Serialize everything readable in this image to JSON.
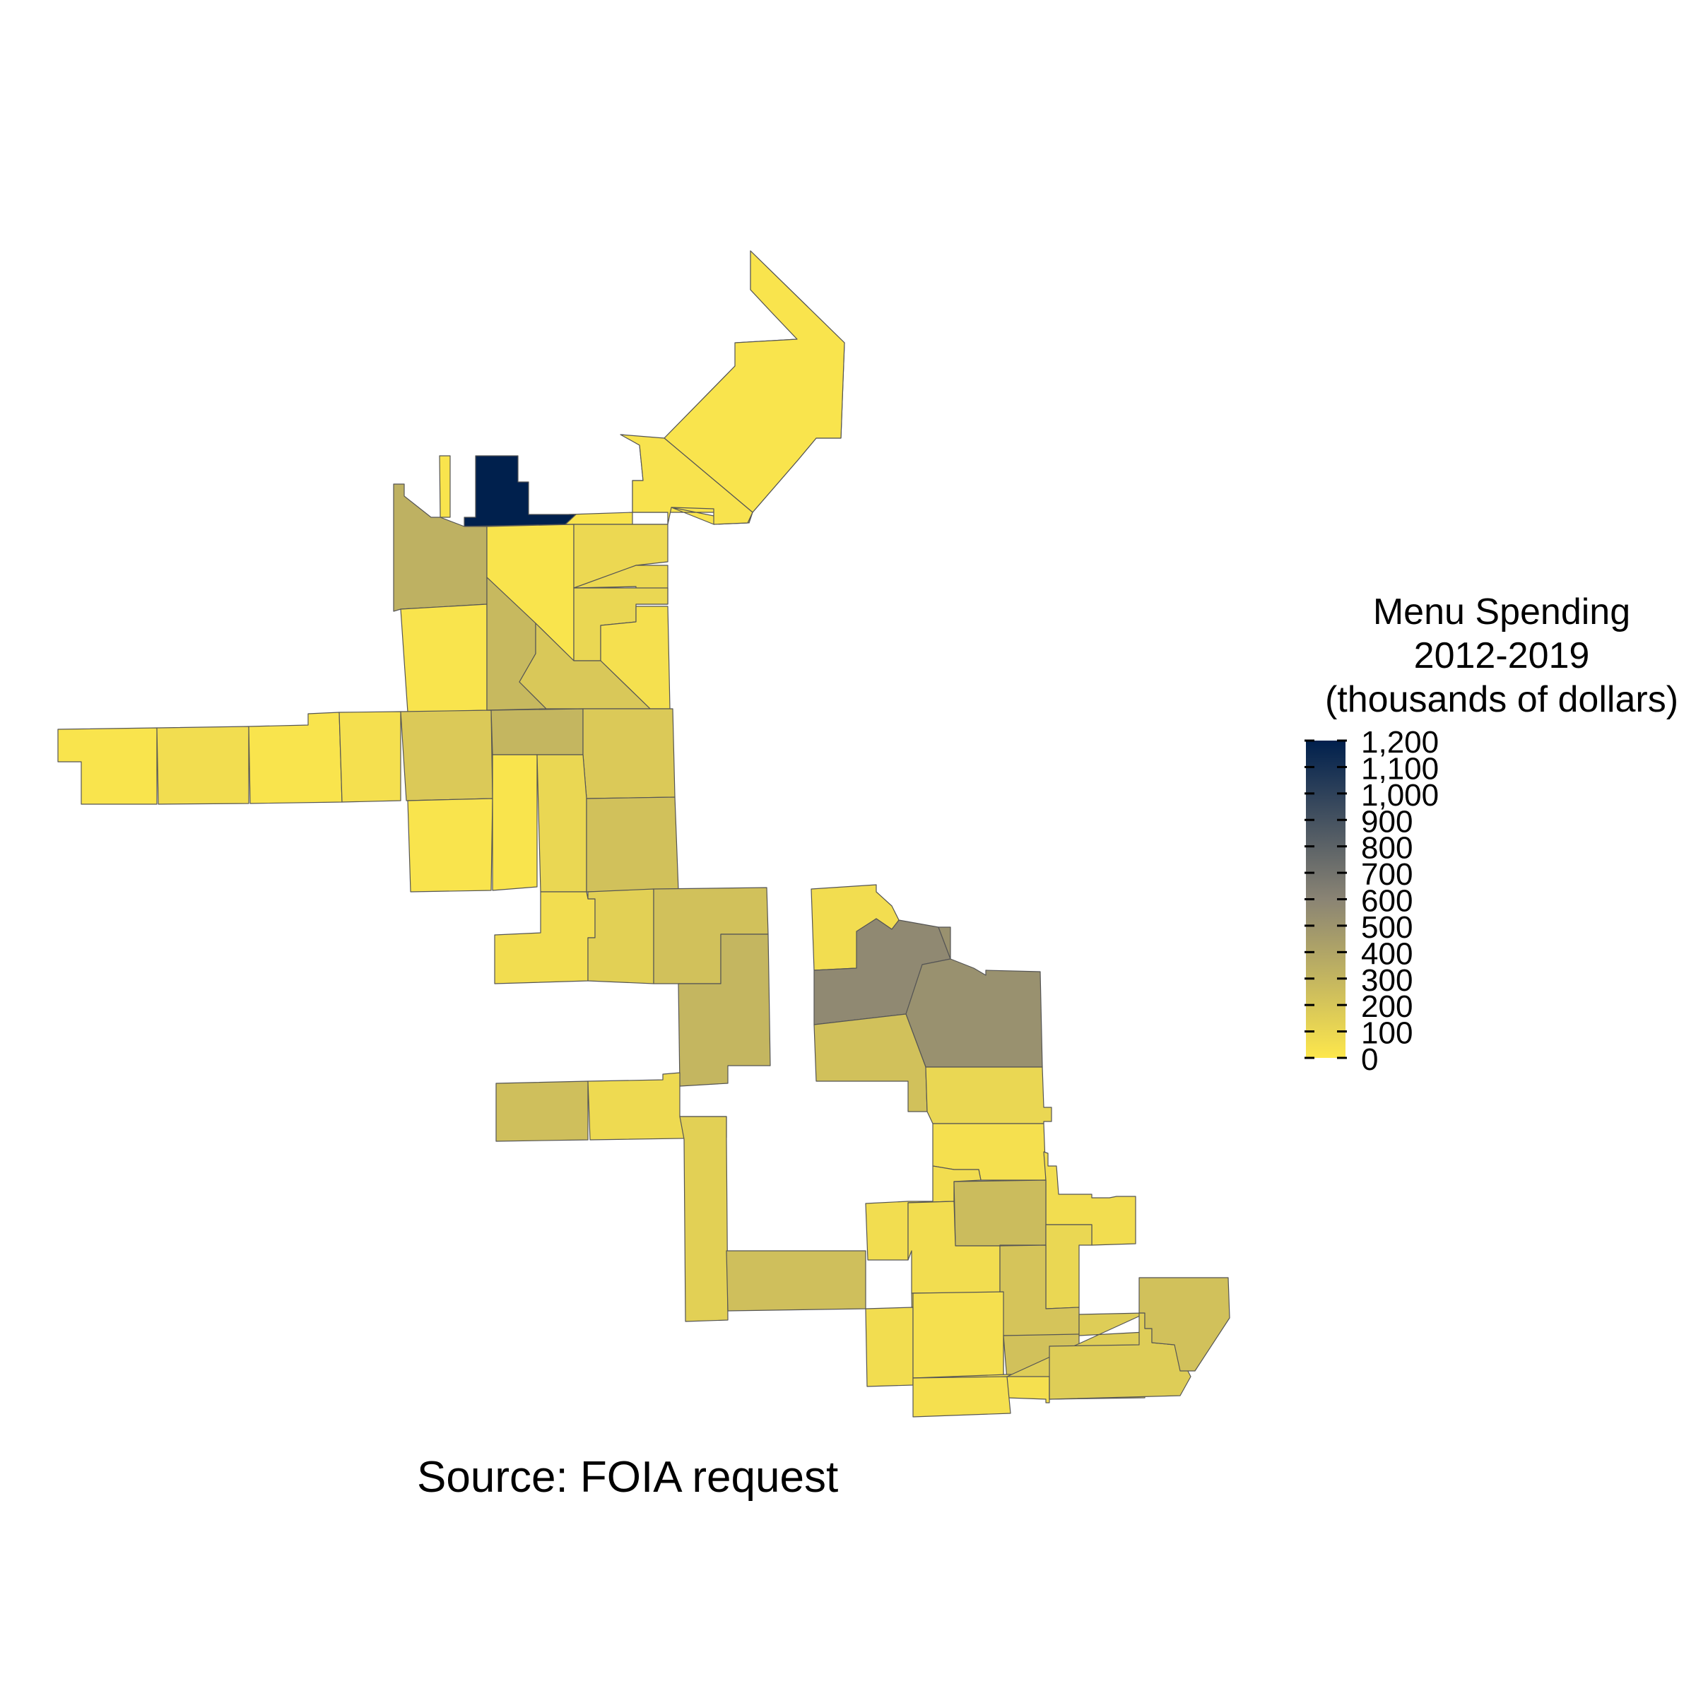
{
  "legend": {
    "title_lines": [
      "Menu Spending",
      "2012-2019",
      "(thousands of dollars)"
    ],
    "min": 0,
    "max": 1200,
    "ticks": [
      {
        "value": 1200,
        "label": "1,200"
      },
      {
        "value": 1100,
        "label": "1,100"
      },
      {
        "value": 1000,
        "label": "1,000"
      },
      {
        "value": 900,
        "label": "900"
      },
      {
        "value": 800,
        "label": "800"
      },
      {
        "value": 700,
        "label": "700"
      },
      {
        "value": 600,
        "label": "600"
      },
      {
        "value": 500,
        "label": "500"
      },
      {
        "value": 400,
        "label": "400"
      },
      {
        "value": 300,
        "label": "300"
      },
      {
        "value": 200,
        "label": "200"
      },
      {
        "value": 100,
        "label": "100"
      },
      {
        "value": 0,
        "label": "0"
      }
    ],
    "colors": {
      "low": "#fde74c",
      "mid": "#8a8474",
      "high": "#00204d"
    }
  },
  "caption": "Source: FOIA request",
  "colors": {
    "border": "#555555",
    "background": "#ffffff"
  }
}
